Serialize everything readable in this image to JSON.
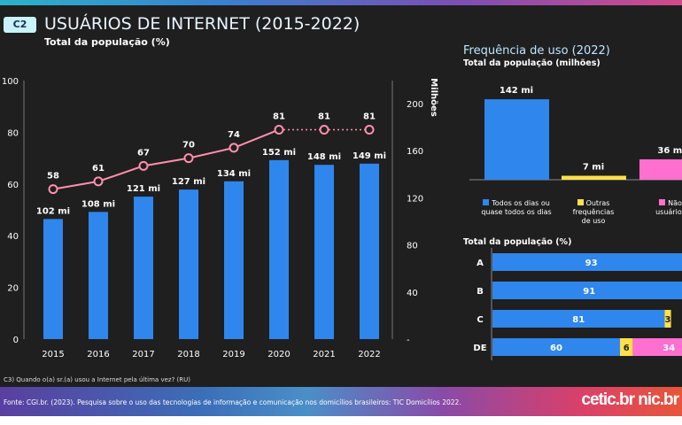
{
  "header": {
    "badge": "C2",
    "title": "USUÁRIOS DE INTERNET (2015-2022)",
    "subtitle": "Total da população (%)"
  },
  "right_panel": {
    "title": "Frequência de uso (2022)",
    "subtitle": "Total da população (milhões)",
    "subtitle2": "Total da população (%)"
  },
  "question": "C3) Quando o(a) sr.(a) usou a Internet pela última vez? (RU)",
  "source": "Fonte: CGI.br. (2023). Pesquisa sobre o uso das tecnologias de informação e comunicação nos domicílios brasileiros: TIC Domicílios 2022.",
  "logo": "cetic.br  nic.br",
  "colors": {
    "blue": "#2f86ec",
    "yellow": "#ffe04a",
    "pink": "#ff6fcf",
    "line": "#ff8fb0"
  },
  "chart_data": [
    {
      "type": "bar+line",
      "title": "USUÁRIOS DE INTERNET (2015-2022)",
      "categories": [
        "2015",
        "2016",
        "2017",
        "2018",
        "2019",
        "2020",
        "2021",
        "2022"
      ],
      "bars": {
        "name": "Milhões",
        "values": [
          102,
          108,
          121,
          127,
          134,
          152,
          148,
          149
        ],
        "labels": [
          "102 mi",
          "108 mi",
          "121 mi",
          "127 mi",
          "134 mi",
          "152 mi",
          "148 mi",
          "149 mi"
        ]
      },
      "line": {
        "name": "Total da população (%)",
        "values": [
          58,
          61,
          67,
          70,
          74,
          81,
          81,
          81
        ],
        "dotted_from": "2020"
      },
      "y_left": {
        "ticks": [
          0,
          20,
          40,
          60,
          80,
          100
        ],
        "lim": [
          0,
          100
        ]
      },
      "y_right": {
        "label": "Milhões",
        "ticks": [
          "-",
          "40",
          "80",
          "120",
          "160",
          "200"
        ],
        "lim": [
          0,
          220
        ]
      }
    },
    {
      "type": "bar",
      "title": "Frequência de uso (2022)",
      "categories": [
        "Todos os dias ou quase todos os dias",
        "Outras frequências de uso",
        "Não usuários"
      ],
      "legend": [
        "Todos os dias ou\nquase todos os dias",
        "Outras\nfrequências\nde uso",
        "Não\nusuários"
      ],
      "values": [
        142,
        7,
        36
      ],
      "labels": [
        "142 mi",
        "7 mi",
        "36 mi"
      ]
    },
    {
      "type": "stacked-bar-horizontal",
      "title": "Total da população (%)",
      "categories": [
        "A",
        "B",
        "C",
        "DE"
      ],
      "series": [
        {
          "name": "Todos os dias ou quase todos os dias",
          "values": [
            93,
            91,
            81,
            60
          ]
        },
        {
          "name": "Outras frequências de uso",
          "values": [
            null,
            null,
            3,
            6
          ]
        },
        {
          "name": "Não usuários",
          "values": [
            null,
            null,
            null,
            34
          ]
        }
      ]
    }
  ]
}
